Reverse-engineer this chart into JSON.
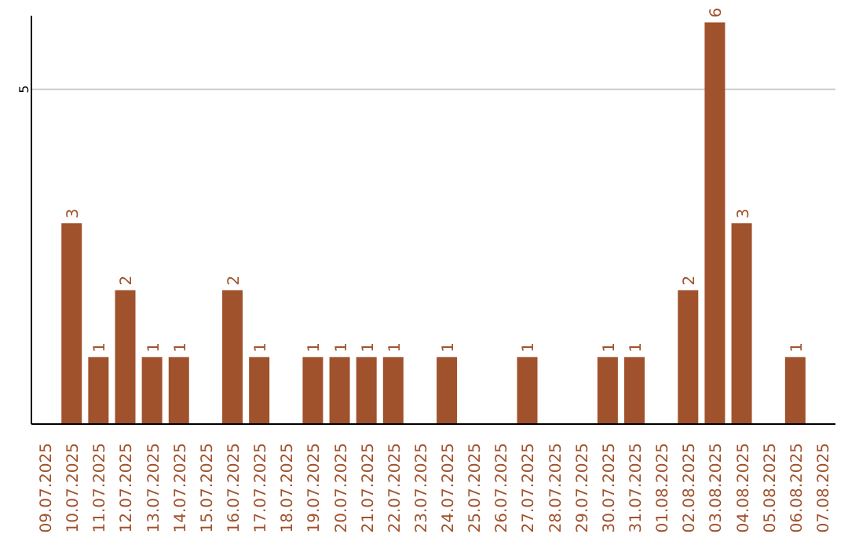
{
  "chart_data": {
    "type": "bar",
    "categories": [
      "09.07.2025",
      "10.07.2025",
      "11.07.2025",
      "12.07.2025",
      "13.07.2025",
      "14.07.2025",
      "15.07.2025",
      "16.07.2025",
      "17.07.2025",
      "18.07.2025",
      "19.07.2025",
      "20.07.2025",
      "21.07.2025",
      "22.07.2025",
      "23.07.2025",
      "24.07.2025",
      "25.07.2025",
      "26.07.2025",
      "27.07.2025",
      "28.07.2025",
      "29.07.2025",
      "30.07.2025",
      "31.07.2025",
      "01.08.2025",
      "02.08.2025",
      "03.08.2025",
      "04.08.2025",
      "05.08.2025",
      "06.08.2025",
      "07.08.2025"
    ],
    "values": [
      0,
      3,
      1,
      2,
      1,
      1,
      0,
      2,
      1,
      0,
      1,
      1,
      1,
      1,
      0,
      1,
      0,
      0,
      1,
      0,
      0,
      1,
      1,
      0,
      2,
      6,
      3,
      0,
      1,
      0
    ],
    "value_labels": [
      null,
      "3",
      "1",
      "2",
      "1",
      "1",
      null,
      "2",
      "1",
      null,
      "1",
      "1",
      "1",
      "1",
      null,
      "1",
      null,
      null,
      "1",
      null,
      null,
      "1",
      "1",
      null,
      "2",
      "6",
      "3",
      null,
      "1",
      null
    ],
    "color": "#a0522d",
    "ylim": [
      0,
      6.1
    ],
    "yticks": [
      5
    ],
    "grid": "y"
  }
}
